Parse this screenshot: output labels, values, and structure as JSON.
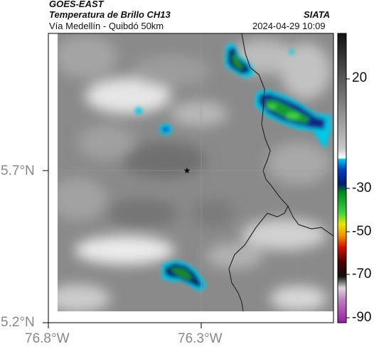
{
  "header": {
    "title": "GOES-EAST",
    "subtitle": "Temperatura de Brillo CH13",
    "location": "Vía Medellín - Quibdó 50km",
    "agency": "SIATA",
    "timestamp": "2024-04-29 10:09"
  },
  "axes": {
    "lat_ticks": [
      "5.7°N",
      "5.2°N"
    ],
    "lon_ticks": [
      "76.8°W",
      "76.3°W"
    ]
  },
  "colorbar": {
    "ticks": [
      "20",
      "-30",
      "-50",
      "-70",
      "-90"
    ]
  },
  "marker": {
    "symbol": "★"
  },
  "colors": {
    "frame": "#000000",
    "boundary": "#2a2a2a",
    "tick_text": "#888888"
  },
  "legend_icon": "colorbar-icon"
}
